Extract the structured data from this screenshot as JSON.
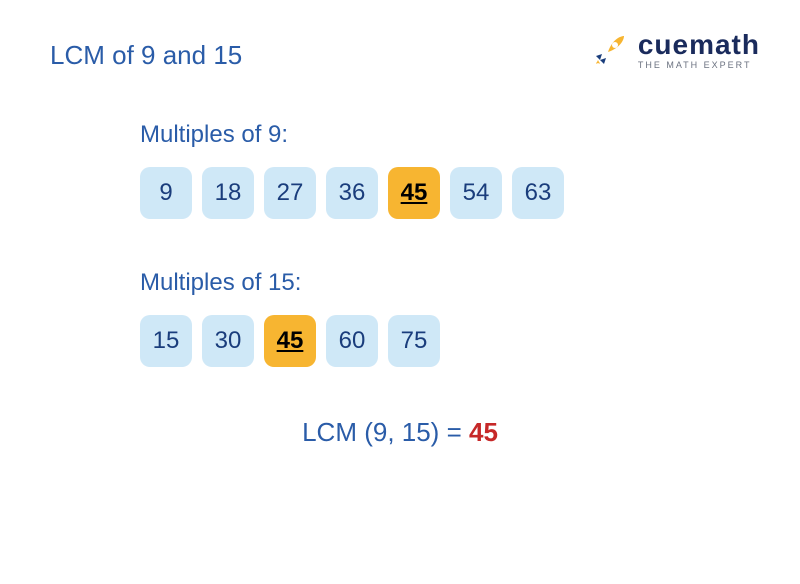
{
  "title": "LCM of 9 and 15",
  "logo": {
    "main": "cuemath",
    "sub": "THE MATH EXPERT"
  },
  "colors": {
    "title_color": "#2a5ca8",
    "box_normal_bg": "#cfe8f7",
    "box_highlight_bg": "#f7b531",
    "box_text_color": "#1a3d7c",
    "result_label_color": "#2a5ca8",
    "result_value_color": "#c62828",
    "logo_rocket_body": "#f7b531",
    "logo_rocket_fin": "#1a3d7c",
    "box_radius": 10,
    "box_size": 52,
    "font_size_title": 26,
    "font_size_label": 24,
    "font_size_box": 24
  },
  "sections": [
    {
      "label": "Multiples of 9:",
      "values": [
        {
          "n": "9",
          "highlight": false
        },
        {
          "n": "18",
          "highlight": false
        },
        {
          "n": "27",
          "highlight": false
        },
        {
          "n": "36",
          "highlight": false
        },
        {
          "n": "45",
          "highlight": true
        },
        {
          "n": "54",
          "highlight": false
        },
        {
          "n": "63",
          "highlight": false
        }
      ]
    },
    {
      "label": "Multiples of 15:",
      "values": [
        {
          "n": "15",
          "highlight": false
        },
        {
          "n": "30",
          "highlight": false
        },
        {
          "n": "45",
          "highlight": true
        },
        {
          "n": "60",
          "highlight": false
        },
        {
          "n": "75",
          "highlight": false
        }
      ]
    }
  ],
  "result": {
    "label": "LCM (9, 15) = ",
    "value": "45"
  }
}
